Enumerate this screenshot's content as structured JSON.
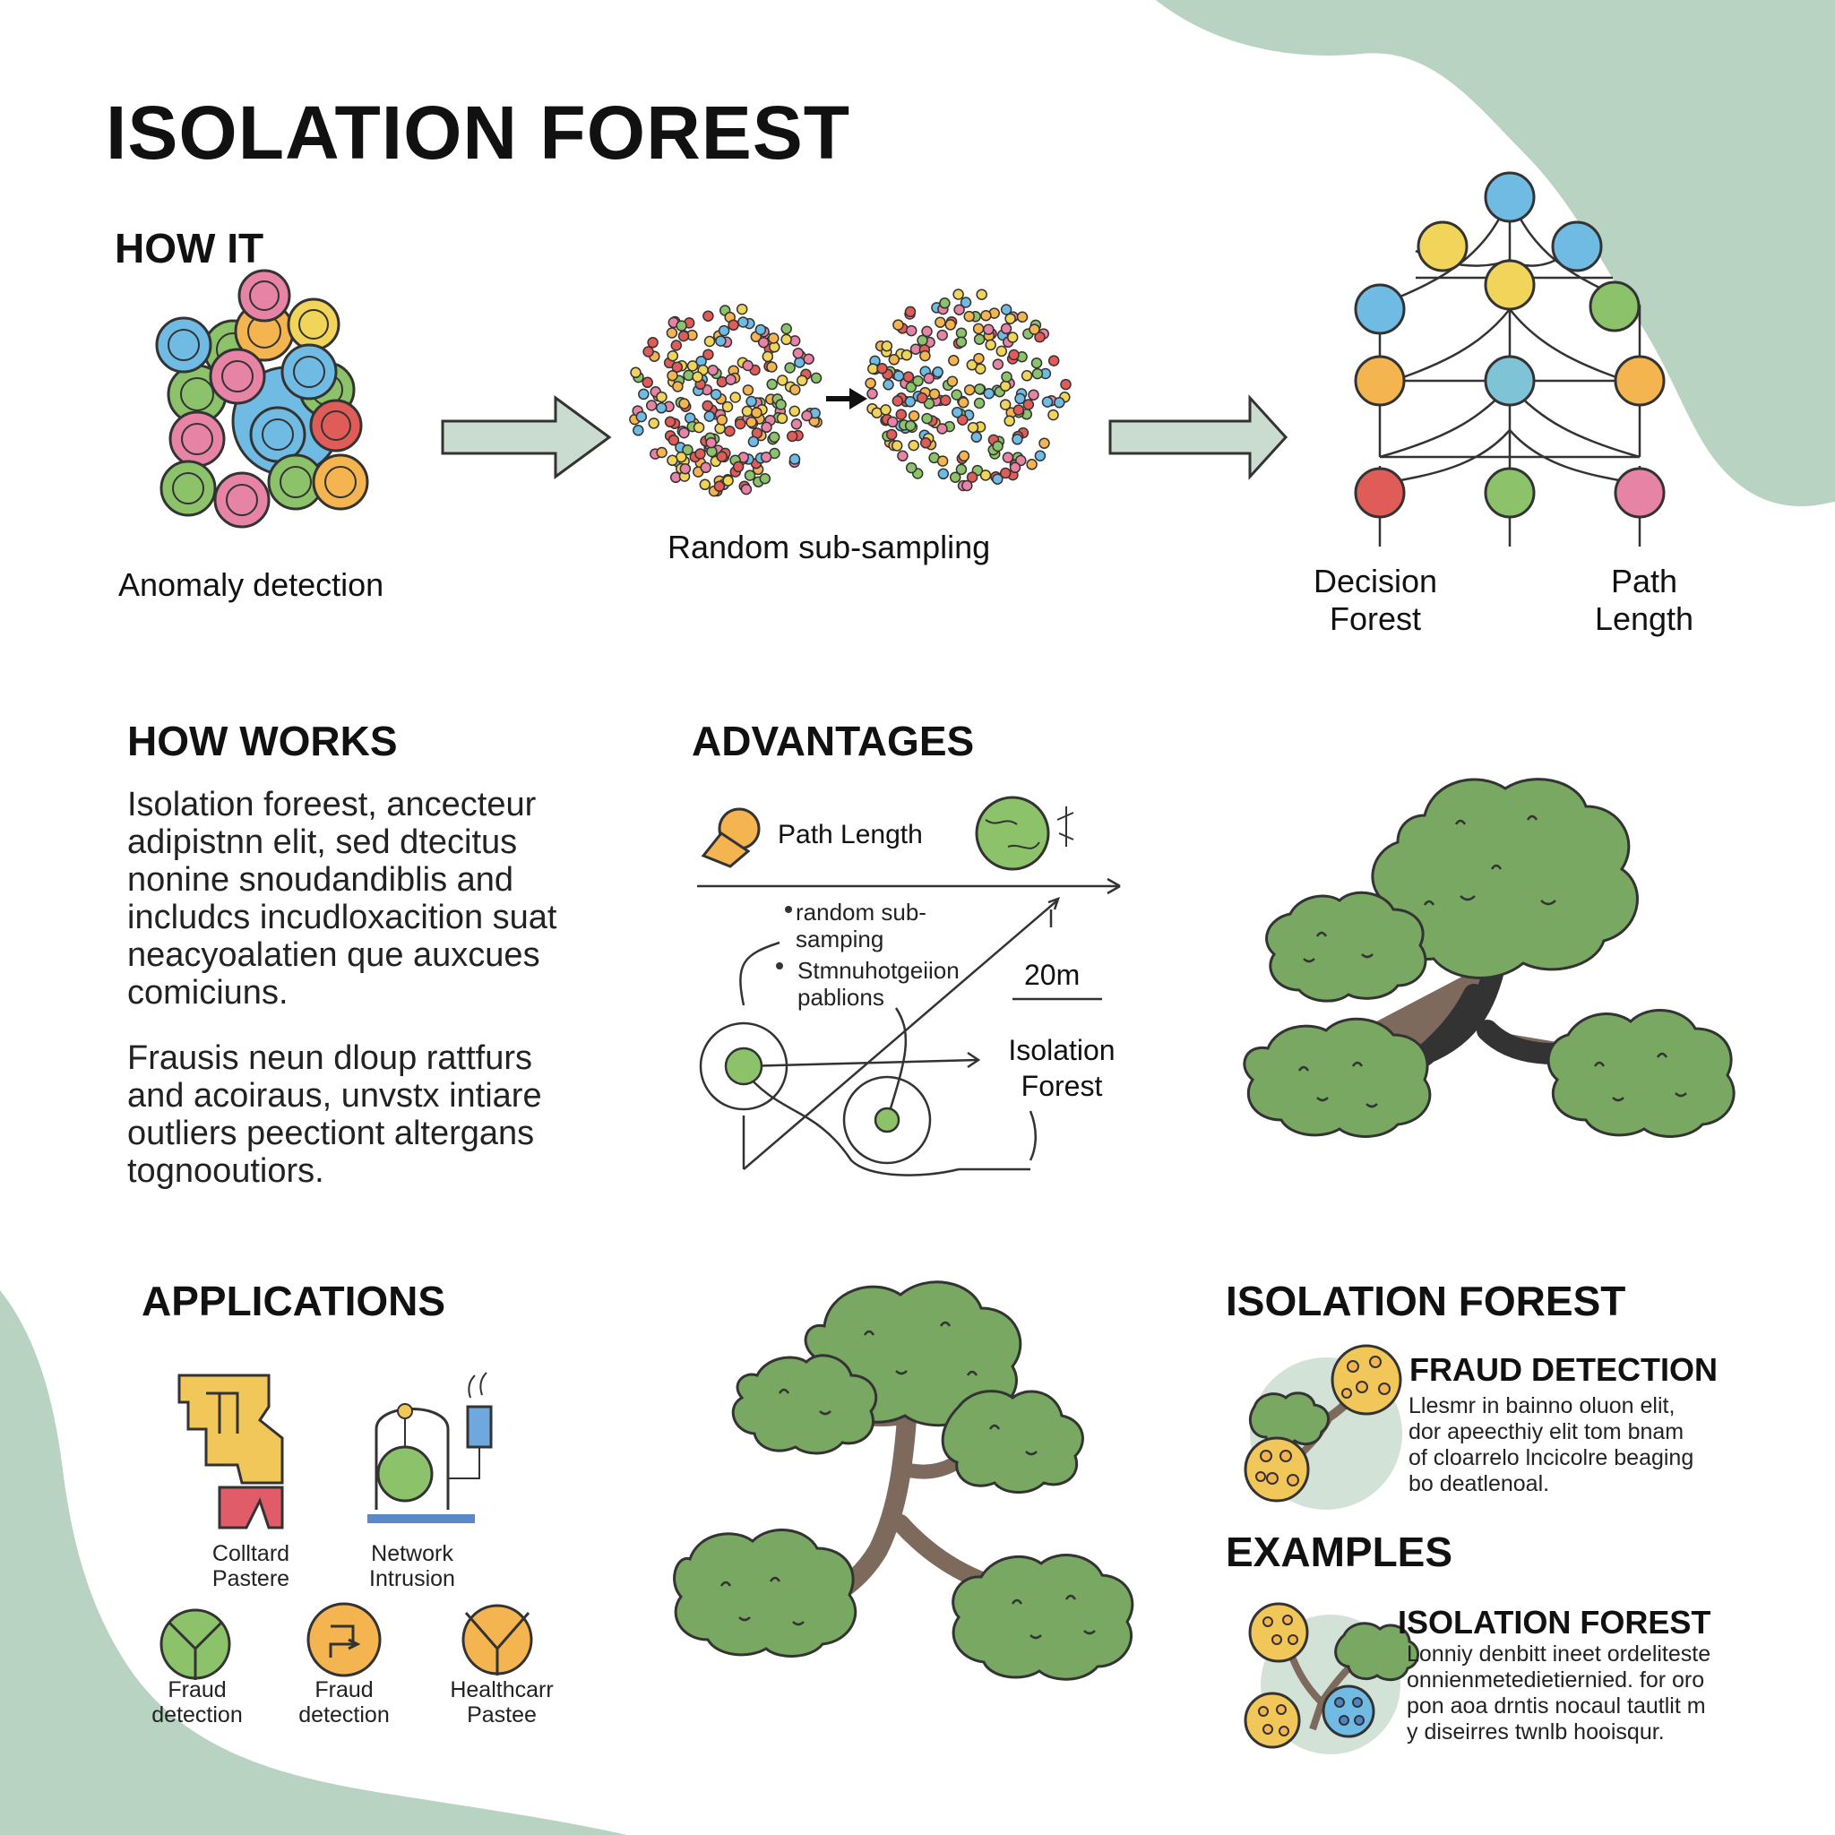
{
  "title": "ISOLATION FOREST",
  "colors": {
    "blob": "#b9d3c2",
    "arrow": "#c9dccf",
    "tree_green": "#79a862",
    "trunk": "#7d6a5c",
    "pink": "#e783a5",
    "blue": "#6fbbe3",
    "yellow": "#f1d45a",
    "orange": "#f4b44f",
    "green": "#8cc36a",
    "red": "#e05c58"
  },
  "top": {
    "heading": "HOW IT",
    "anomaly_label": "Anomaly detection",
    "subsampling_label": "Random sub-sampling",
    "decision_forest_label": "Decision Forest",
    "path_length_label": "Path Length"
  },
  "how_works": {
    "heading": "HOW WORKS",
    "paragraph1": "Isolation foreest, ancecteur adipistnn elit, sed dtecitus nonine snoudandiblis and includcs incudloxacition suat neacyoalatien que auxcues comiciuns.",
    "paragraph2": "Frausis neun dloup rattfurs and acoiraus, unvstx intiare outliers peectiont altergans tognooutiors."
  },
  "advantages": {
    "heading": "ADVANTAGES",
    "path_length": "Path Length",
    "random_sub_sampling": "random sub-samping",
    "simulation_paths": "Stmnuhotgeiion pablions",
    "distance": "20m",
    "isolation_forest": "Isolation Forest"
  },
  "applications": {
    "heading": "APPLICATIONS",
    "items": [
      {
        "label": "Colltard Pastere"
      },
      {
        "label": "Network Intrusion"
      },
      {
        "label": "Fraud detection"
      },
      {
        "label": "Fraud detection"
      },
      {
        "label": "Healthcarr Pastee"
      }
    ]
  },
  "right_panel": {
    "heading": "ISOLATION FOREST",
    "fraud": {
      "title": "FRAUD DETECTION",
      "text": "Llesmr in bainno oluon elit, dor apeecthiy elit tom bnam of cloarrelo lncicolre beaging bo deatlenoal."
    },
    "examples_heading": "EXAMPLES",
    "examples": {
      "title": "ISOLATION FOREST",
      "text": "Lonniy denbitt ineet ordelitesteonnienmetedietiernied. for oropon aoa drntis nocaul tautlit my diseirres twnlb hooisqur."
    }
  }
}
